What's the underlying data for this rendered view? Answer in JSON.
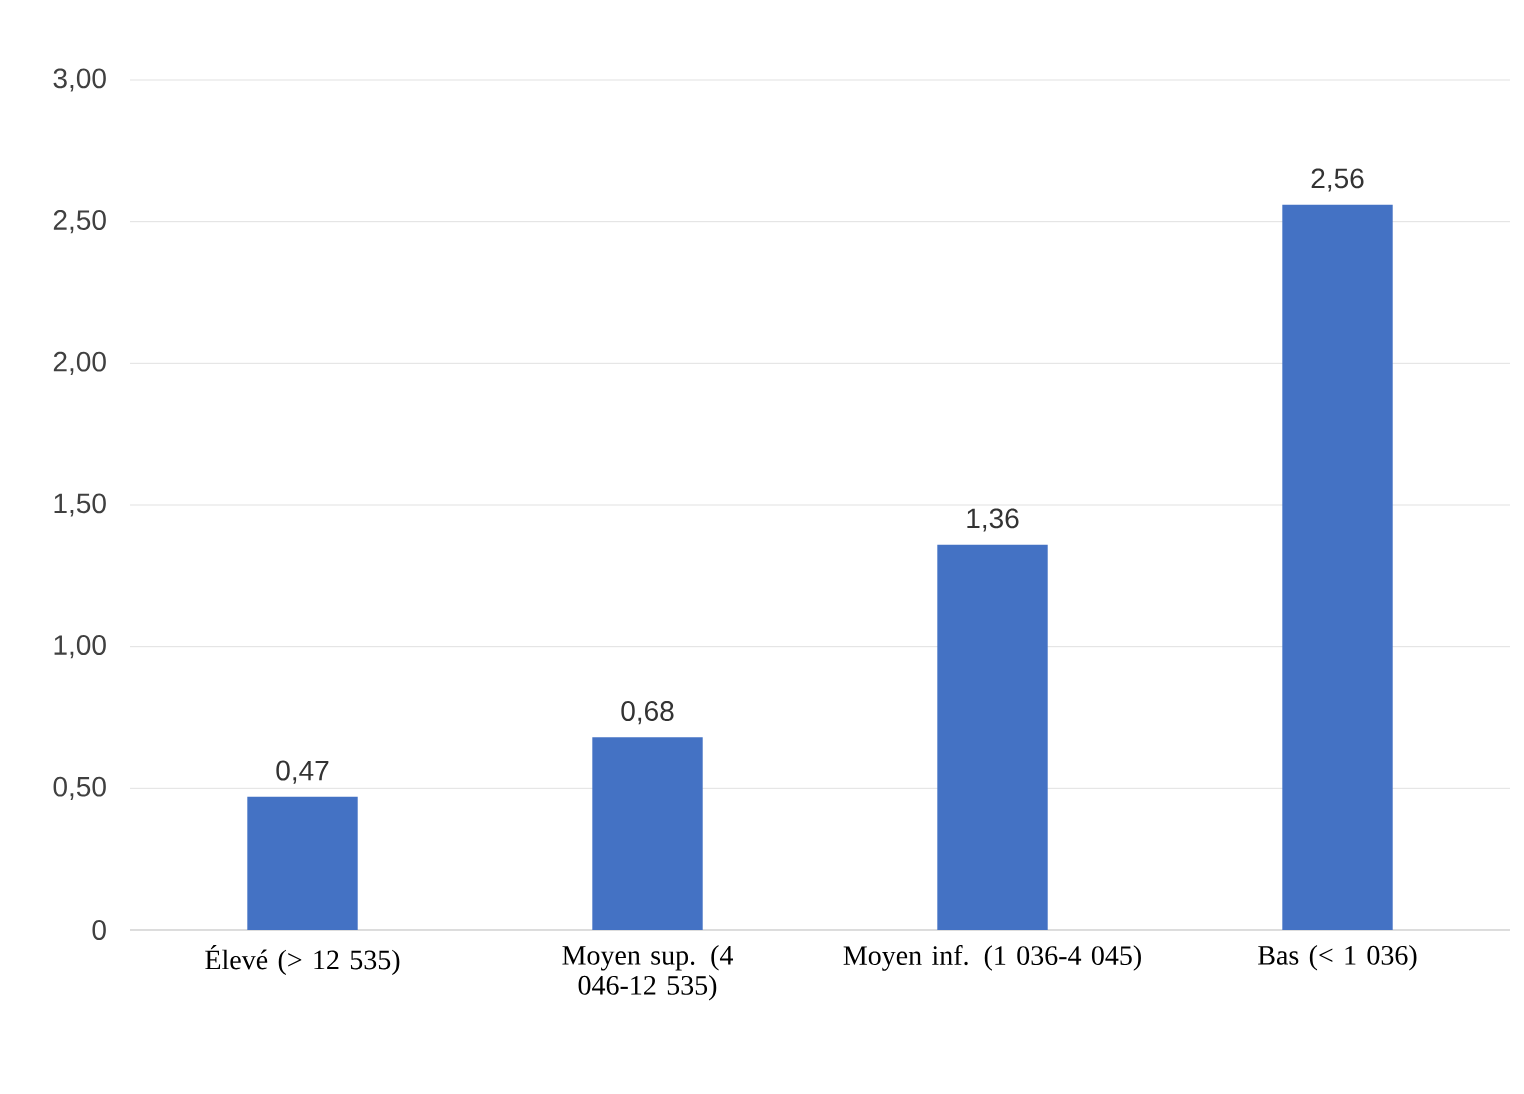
{
  "chart_data": {
    "type": "bar",
    "categories": [
      "Élevé (> 12 535)",
      "Moyen sup. (4 046-12 535)",
      "Moyen inf. (1 036-4 045)",
      "Bas (< 1 036)"
    ],
    "values": [
      0.47,
      0.68,
      1.36,
      2.56
    ],
    "value_labels": [
      "0,47",
      "0,68",
      "1,36",
      "2,56"
    ],
    "color": "#4472c4",
    "ylim": [
      0,
      3
    ],
    "yticks": [
      0,
      {
        "value": 0.5,
        "label": "0,50"
      },
      {
        "value": 1,
        "label": "1,00"
      },
      {
        "value": 1.5,
        "label": "1,50"
      },
      {
        "value": 2,
        "label": "2,00"
      },
      {
        "value": 2.5,
        "label": "2,50"
      },
      {
        "value": 3,
        "label": "3,00"
      }
    ],
    "grid": "y"
  }
}
